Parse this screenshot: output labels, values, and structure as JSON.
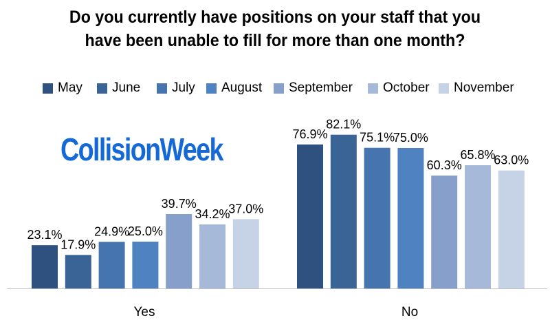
{
  "chart_data": {
    "type": "bar",
    "title": [
      "Do you currently have positions on your staff that you",
      "have been unable to fill for more than one month?"
    ],
    "categories": [
      "Yes",
      "No"
    ],
    "series": [
      {
        "name": "May",
        "color": "#2e5180",
        "values": [
          23.1,
          76.9
        ],
        "labels": [
          "23.1%",
          "76.9%"
        ]
      },
      {
        "name": "June",
        "color": "#3a6396",
        "values": [
          17.9,
          82.1
        ],
        "labels": [
          "17.9%",
          "82.1%"
        ]
      },
      {
        "name": "July",
        "color": "#4574ae",
        "values": [
          24.9,
          75.1
        ],
        "labels": [
          "24.9%",
          "75.1%"
        ]
      },
      {
        "name": "August",
        "color": "#4f82c0",
        "values": [
          25.0,
          75.0
        ],
        "labels": [
          "25.0%",
          "75.0%"
        ]
      },
      {
        "name": "September",
        "color": "#869fcb",
        "values": [
          39.7,
          60.3
        ],
        "labels": [
          "39.7%",
          "60.3%"
        ]
      },
      {
        "name": "October",
        "color": "#a7b9d8",
        "values": [
          34.2,
          65.8
        ],
        "labels": [
          "34.2%",
          "65.8%"
        ]
      },
      {
        "name": "November",
        "color": "#c6d2e6",
        "values": [
          37.0,
          63.0
        ],
        "labels": [
          "37.0%",
          "63.0%"
        ]
      }
    ],
    "ylim": [
      0,
      100
    ],
    "grid": false,
    "legend_position": "top",
    "xlabel": "",
    "ylabel": ""
  },
  "watermark": "CollisionWeek"
}
